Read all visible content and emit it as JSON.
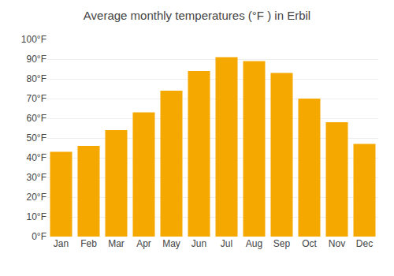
{
  "chart_data": {
    "type": "bar",
    "title": "Average monthly temperatures (°F ) in Erbil",
    "categories": [
      "Jan",
      "Feb",
      "Mar",
      "Apr",
      "May",
      "Jun",
      "Jul",
      "Aug",
      "Sep",
      "Oct",
      "Nov",
      "Dec"
    ],
    "values": [
      43,
      46,
      54,
      63,
      74,
      84,
      91,
      89,
      83,
      70,
      58,
      47
    ],
    "color": "#F5A800",
    "ylim": [
      0,
      100
    ],
    "yticks": [
      {
        "value": 0,
        "label": "0°F"
      },
      {
        "value": 10,
        "label": "10°F"
      },
      {
        "value": 20,
        "label": "20°F"
      },
      {
        "value": 30,
        "label": "30°F"
      },
      {
        "value": 40,
        "label": "40°F"
      },
      {
        "value": 50,
        "label": "50°F"
      },
      {
        "value": 60,
        "label": "60°F"
      },
      {
        "value": 70,
        "label": "70°F"
      },
      {
        "value": 80,
        "label": "80°F"
      },
      {
        "value": 90,
        "label": "90°F"
      },
      {
        "value": 100,
        "label": "100°F"
      }
    ],
    "grid": true
  }
}
